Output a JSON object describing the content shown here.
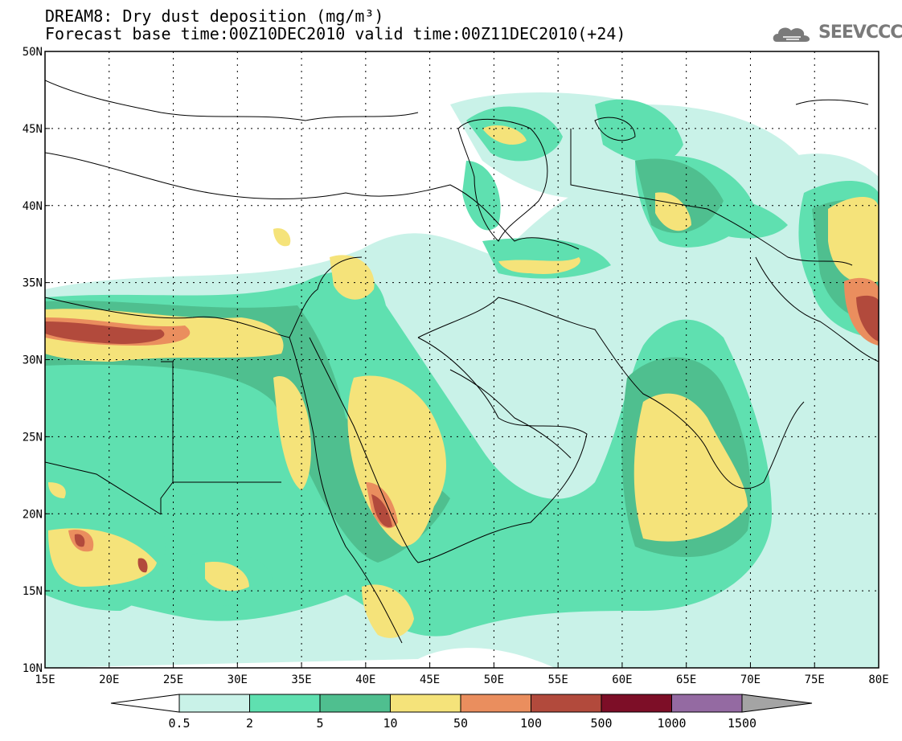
{
  "title": {
    "line1": "DREAM8: Dry dust deposition (mg/m³)",
    "line2": "Forecast base time:00Z10DEC2010 valid time:00Z11DEC2010(+24)"
  },
  "logo": {
    "text": "SEEVCCC"
  },
  "map": {
    "lon_range": [
      15,
      80
    ],
    "lat_range": [
      10,
      50
    ],
    "lon_ticks": [
      "15E",
      "20E",
      "25E",
      "30E",
      "35E",
      "40E",
      "45E",
      "50E",
      "55E",
      "60E",
      "65E",
      "70E",
      "75E",
      "80E"
    ],
    "lat_ticks": [
      "10N",
      "15N",
      "20N",
      "25N",
      "30N",
      "35N",
      "40N",
      "45N",
      "50N"
    ],
    "grid": true
  },
  "colorbar": {
    "levels": [
      "0.5",
      "2",
      "5",
      "10",
      "50",
      "100",
      "500",
      "1000",
      "1500"
    ],
    "colors": [
      "#c9f2e8",
      "#5fe0b0",
      "#4fbf8f",
      "#f5e37a",
      "#ea8e5e",
      "#b24a3c",
      "#7d0e27",
      "#946aa2"
    ],
    "lower_color": "#ffffff",
    "upper_color": "#a4a4a4"
  }
}
